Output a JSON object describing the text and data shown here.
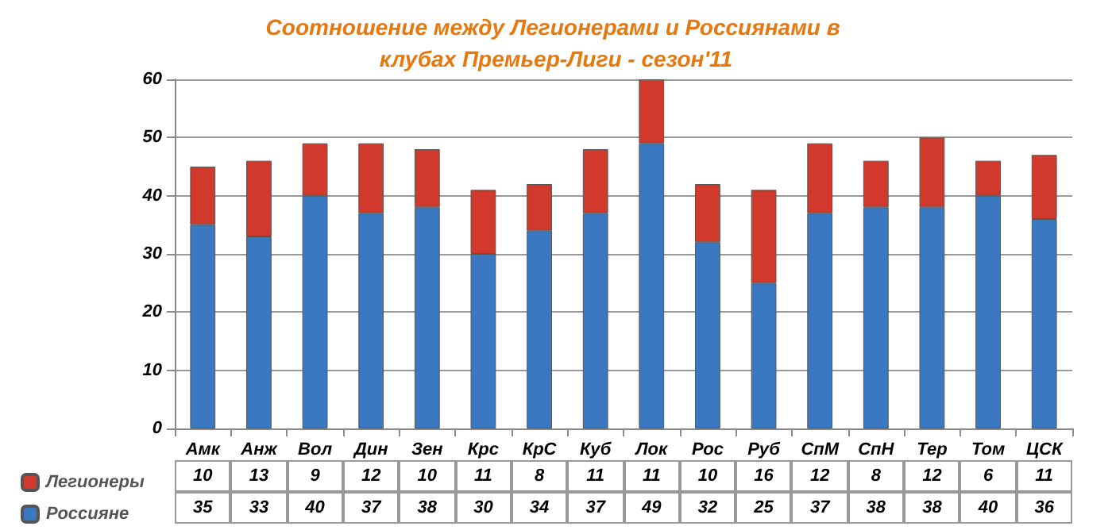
{
  "chart_data": {
    "type": "bar",
    "title": "Соотношение между Легионерами и Россиянами в клубах Премьер-Лиги - сезон'11",
    "categories": [
      "Амк",
      "Анж",
      "Вол",
      "Дин",
      "Зен",
      "Крс",
      "КрС",
      "Куб",
      "Лок",
      "Рос",
      "Руб",
      "СпМ",
      "СпН",
      "Тер",
      "Том",
      "ЦСК"
    ],
    "series": [
      {
        "name": "Россияне",
        "color": "#3b78c2",
        "values": [
          35,
          33,
          40,
          37,
          38,
          30,
          34,
          37,
          49,
          32,
          25,
          37,
          38,
          38,
          40,
          36
        ]
      },
      {
        "name": "Легионеры",
        "color": "#d0392b",
        "values": [
          10,
          13,
          9,
          12,
          10,
          11,
          8,
          11,
          11,
          10,
          16,
          12,
          8,
          12,
          6,
          11
        ]
      }
    ],
    "stacked": true,
    "data_labels": true,
    "ylim": [
      0,
      60
    ],
    "yticks": [
      0,
      10,
      20,
      30,
      40,
      50,
      60
    ],
    "grid": "y",
    "legend": "bottom left"
  }
}
